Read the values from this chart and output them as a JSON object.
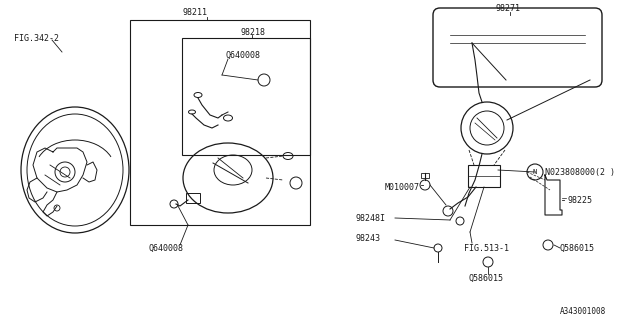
{
  "bg_color": "#ffffff",
  "line_color": "#1a1a1a",
  "text_color": "#1a1a1a",
  "diagram_ref": "A343001008",
  "font_size": 6.0,
  "labels": {
    "fig342": "FIG.342-2",
    "98211": "98211",
    "98218": "98218",
    "Q640008_top": "Q640008",
    "Q640008_bot": "Q640008",
    "98271": "98271",
    "M010007": "M010007",
    "N023808000": "N023808000(2 )",
    "98248": "98248I",
    "98243": "98243",
    "FIG513": "FIG.513-1",
    "Q586015_bot": "Q586015",
    "Q586015_right": "Q586015",
    "98225": "98225"
  }
}
